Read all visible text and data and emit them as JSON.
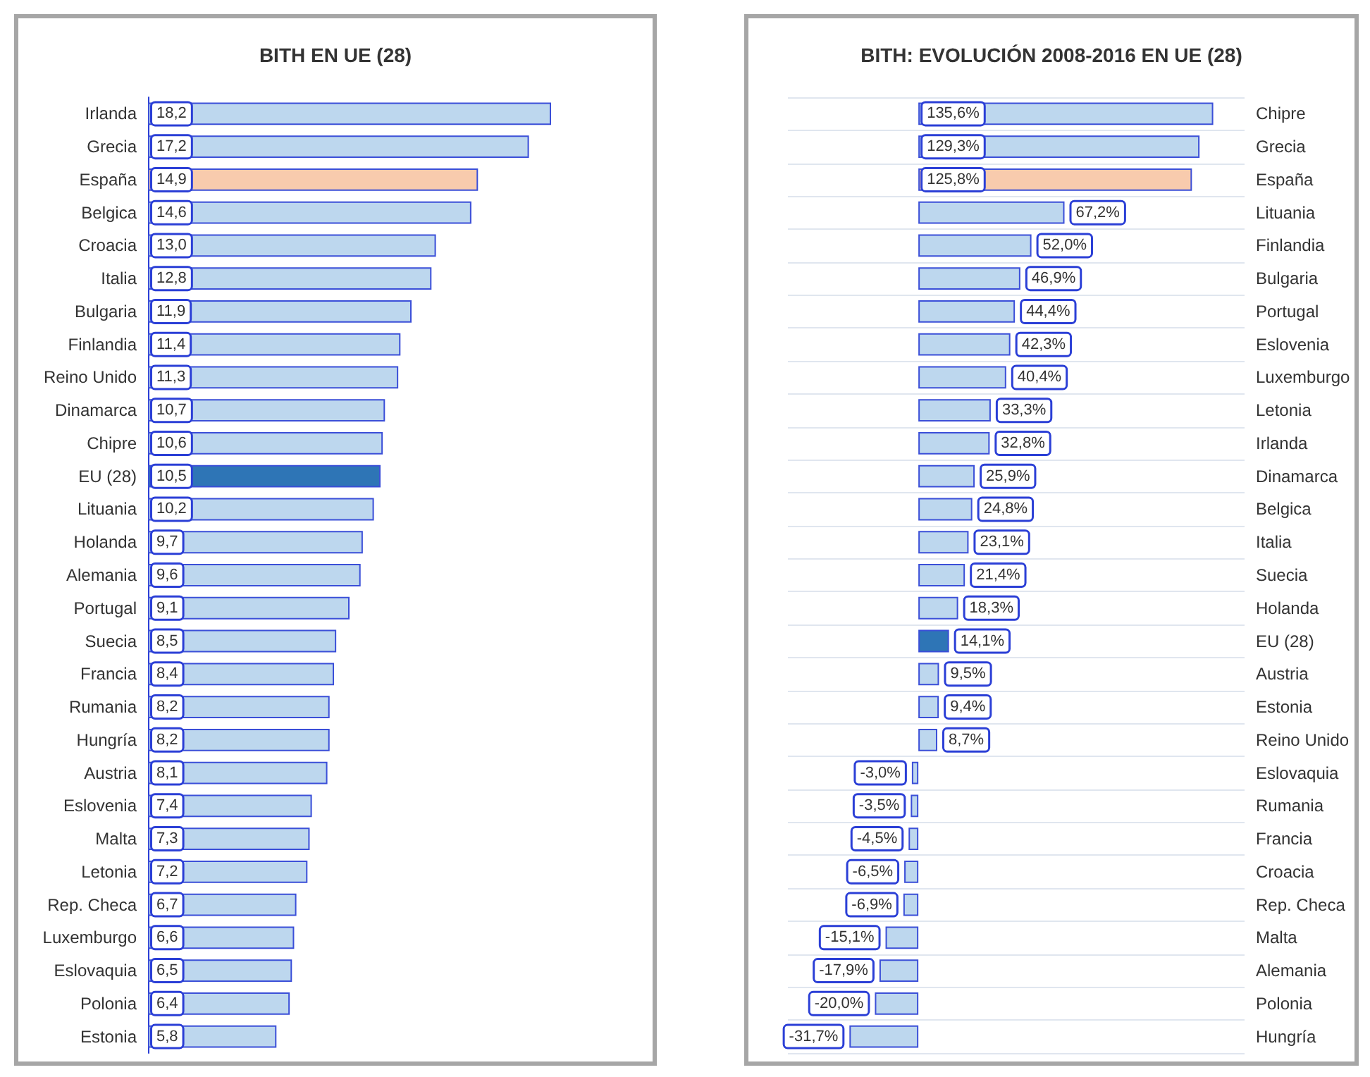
{
  "chart_data": [
    {
      "type": "bar",
      "orientation": "horizontal",
      "title": "BITH EN UE (28)",
      "categories": [
        "Irlanda",
        "Grecia",
        "España",
        "Belgica",
        "Croacia",
        "Italia",
        "Bulgaria",
        "Finlandia",
        "Reino Unido",
        "Dinamarca",
        "Chipre",
        "EU (28)",
        "Lituania",
        "Holanda",
        "Alemania",
        "Portugal",
        "Suecia",
        "Francia",
        "Rumania",
        "Hungría",
        "Austria",
        "Eslovenia",
        "Malta",
        "Letonia",
        "Rep. Checa",
        "Luxemburgo",
        "Eslovaquia",
        "Polonia",
        "Estonia"
      ],
      "values": [
        18.2,
        17.2,
        14.9,
        14.6,
        13.0,
        12.8,
        11.9,
        11.4,
        11.3,
        10.7,
        10.6,
        10.5,
        10.2,
        9.7,
        9.6,
        9.1,
        8.5,
        8.4,
        8.2,
        8.2,
        8.1,
        7.4,
        7.3,
        7.2,
        6.7,
        6.6,
        6.5,
        6.4,
        5.8
      ],
      "value_labels": [
        "18,2",
        "17,2",
        "14,9",
        "14,6",
        "13,0",
        "12,8",
        "11,9",
        "11,4",
        "11,3",
        "10,7",
        "10,6",
        "10,5",
        "10,2",
        "9,7",
        "9,6",
        "9,1",
        "8,5",
        "8,4",
        "8,2",
        "8,2",
        "8,1",
        "7,4",
        "7,3",
        "7,2",
        "6,7",
        "6,6",
        "6,5",
        "6,4",
        "5,8"
      ],
      "colors": [
        "#bdd7ee",
        "#bdd7ee",
        "#f8cbad",
        "#bdd7ee",
        "#bdd7ee",
        "#bdd7ee",
        "#bdd7ee",
        "#bdd7ee",
        "#bdd7ee",
        "#bdd7ee",
        "#bdd7ee",
        "#2e75b6",
        "#bdd7ee",
        "#bdd7ee",
        "#bdd7ee",
        "#bdd7ee",
        "#bdd7ee",
        "#bdd7ee",
        "#bdd7ee",
        "#bdd7ee",
        "#bdd7ee",
        "#bdd7ee",
        "#bdd7ee",
        "#bdd7ee",
        "#bdd7ee",
        "#bdd7ee",
        "#bdd7ee",
        "#bdd7ee",
        "#bdd7ee"
      ]
    },
    {
      "type": "bar",
      "orientation": "horizontal",
      "title": "BITH: EVOLUCIÓN 2008-2016 EN UE (28)",
      "grid": "y",
      "categories": [
        "Chipre",
        "Grecia",
        "España",
        "Lituania",
        "Finlandia",
        "Bulgaria",
        "Portugal",
        "Eslovenia",
        "Luxemburgo",
        "Letonia",
        "Irlanda",
        "Dinamarca",
        "Belgica",
        "Italia",
        "Suecia",
        "Holanda",
        "EU (28)",
        "Austria",
        "Estonia",
        "Reino Unido",
        "Eslovaquia",
        "Rumania",
        "Francia",
        "Croacia",
        "Rep. Checa",
        "Malta",
        "Alemania",
        "Polonia",
        "Hungría"
      ],
      "values": [
        135.6,
        129.3,
        125.8,
        67.2,
        52.0,
        46.9,
        44.4,
        42.3,
        40.4,
        33.3,
        32.8,
        25.9,
        24.8,
        23.1,
        21.4,
        18.3,
        14.1,
        9.5,
        9.4,
        8.7,
        -3.0,
        -3.5,
        -4.5,
        -6.5,
        -6.9,
        -15.1,
        -17.9,
        -20.0,
        -31.7
      ],
      "value_labels": [
        "135,6%",
        "129,3%",
        "125,8%",
        "67,2%",
        "52,0%",
        "46,9%",
        "44,4%",
        "42,3%",
        "40,4%",
        "33,3%",
        "32,8%",
        "25,9%",
        "24,8%",
        "23,1%",
        "21,4%",
        "18,3%",
        "14,1%",
        "9,5%",
        "9,4%",
        "8,7%",
        "-3,0%",
        "-3,5%",
        "-4,5%",
        "-6,5%",
        "-6,9%",
        "-15,1%",
        "-17,9%",
        "-20,0%",
        "-31,7%"
      ],
      "colors": [
        "#bdd7ee",
        "#bdd7ee",
        "#f8cbad",
        "#bdd7ee",
        "#bdd7ee",
        "#bdd7ee",
        "#bdd7ee",
        "#bdd7ee",
        "#bdd7ee",
        "#bdd7ee",
        "#bdd7ee",
        "#bdd7ee",
        "#bdd7ee",
        "#bdd7ee",
        "#bdd7ee",
        "#bdd7ee",
        "#2e75b6",
        "#bdd7ee",
        "#bdd7ee",
        "#bdd7ee",
        "#bdd7ee",
        "#bdd7ee",
        "#bdd7ee",
        "#bdd7ee",
        "#bdd7ee",
        "#bdd7ee",
        "#bdd7ee",
        "#bdd7ee",
        "#bdd7ee"
      ]
    }
  ]
}
